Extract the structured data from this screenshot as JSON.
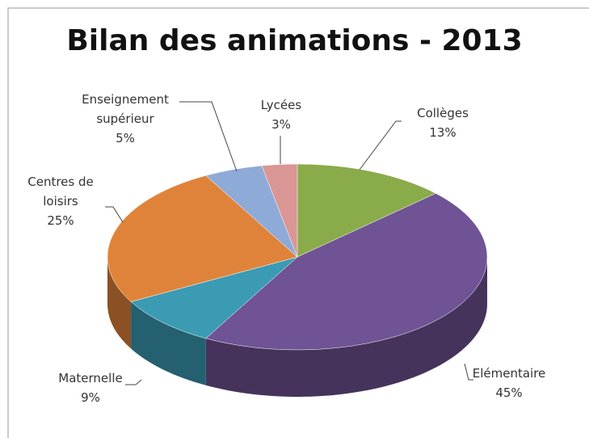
{
  "chart_data": {
    "type": "pie",
    "title": "Bilan des animations - 2013",
    "categories": [
      "Collèges",
      "Elémentaire",
      "Maternelle",
      "Centres de loisirs",
      "Enseignement supérieur",
      "Lycées"
    ],
    "values": [
      13,
      45,
      9,
      25,
      5,
      3
    ],
    "value_labels": [
      "13%",
      "45%",
      "9%",
      "25%",
      "5%",
      "3%"
    ],
    "colors": [
      "#8aab4a",
      "#6f5394",
      "#3a9bb3",
      "#e0833a",
      "#8eaad7",
      "#d99694"
    ]
  }
}
